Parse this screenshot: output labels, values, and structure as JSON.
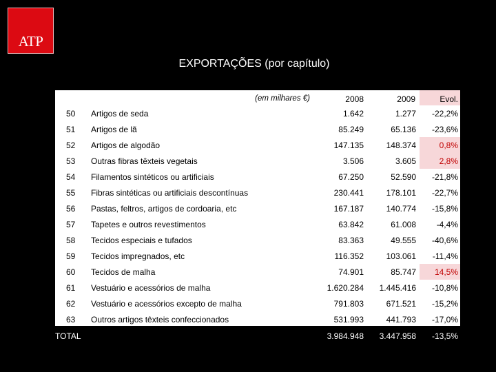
{
  "logo": {
    "text": "ATP",
    "color": "#dc0a12"
  },
  "title": "EXPORTAÇÕES (por capítulo)",
  "header": {
    "unit": "(em milhares €)",
    "col_2008": "2008",
    "col_2009": "2009",
    "col_evol": "Evol."
  },
  "rows": [
    {
      "code": "50",
      "name": "Artigos de seda",
      "v2008": "1.642",
      "v2009": "1.277",
      "evol": "-22,2%",
      "positive": false
    },
    {
      "code": "51",
      "name": "Artigos de lã",
      "v2008": "85.249",
      "v2009": "65.136",
      "evol": "-23,6%",
      "positive": false
    },
    {
      "code": "52",
      "name": "Artigos de algodão",
      "v2008": "147.135",
      "v2009": "148.374",
      "evol": "0,8%",
      "positive": true
    },
    {
      "code": "53",
      "name": "Outras fibras têxteis vegetais",
      "v2008": "3.506",
      "v2009": "3.605",
      "evol": "2,8%",
      "positive": true
    },
    {
      "code": "54",
      "name": "Filamentos sintéticos ou artificiais",
      "v2008": "67.250",
      "v2009": "52.590",
      "evol": "-21,8%",
      "positive": false
    },
    {
      "code": "55",
      "name": "Fibras sintéticas ou artificiais descontínuas",
      "v2008": "230.441",
      "v2009": "178.101",
      "evol": "-22,7%",
      "positive": false
    },
    {
      "code": "56",
      "name": "Pastas, feltros, artigos de cordoaria, etc",
      "v2008": "167.187",
      "v2009": "140.774",
      "evol": "-15,8%",
      "positive": false
    },
    {
      "code": "57",
      "name": "Tapetes e outros revestimentos",
      "v2008": "63.842",
      "v2009": "61.008",
      "evol": "-4,4%",
      "positive": false
    },
    {
      "code": "58",
      "name": "Tecidos especiais e tufados",
      "v2008": "83.363",
      "v2009": "49.555",
      "evol": "-40,6%",
      "positive": false
    },
    {
      "code": "59",
      "name": "Tecidos impregnados, etc",
      "v2008": "116.352",
      "v2009": "103.061",
      "evol": "-11,4%",
      "positive": false
    },
    {
      "code": "60",
      "name": "Tecidos de malha",
      "v2008": "74.901",
      "v2009": "85.747",
      "evol": "14,5%",
      "positive": true
    },
    {
      "code": "61",
      "name": "Vestuário e acessórios de malha",
      "v2008": "1.620.284",
      "v2009": "1.445.416",
      "evol": "-10,8%",
      "positive": false
    },
    {
      "code": "62",
      "name": "Vestuário e acessórios excepto de malha",
      "v2008": "791.803",
      "v2009": "671.521",
      "evol": "-15,2%",
      "positive": false
    },
    {
      "code": "63",
      "name": "Outros artigos têxteis confeccionados",
      "v2008": "531.993",
      "v2009": "441.793",
      "evol": "-17,0%",
      "positive": false
    }
  ],
  "total": {
    "label": "TOTAL",
    "v2008": "3.984.948",
    "v2009": "3.447.958",
    "evol": "-13,5%"
  },
  "colors": {
    "positive_bg": "#f7d7d9",
    "positive_text": "#c00000",
    "background": "#000000"
  }
}
